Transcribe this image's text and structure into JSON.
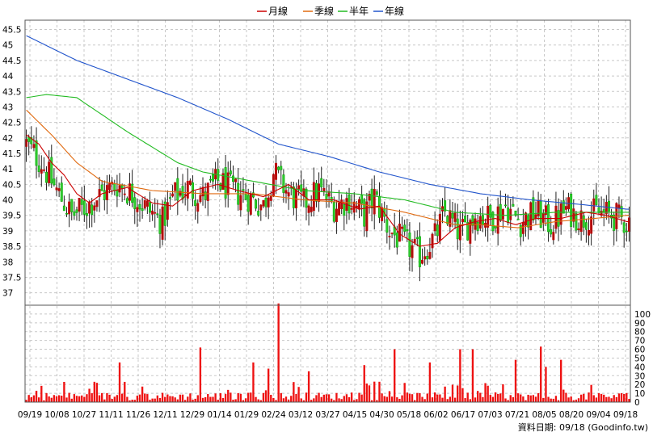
{
  "chart_data": [
    {
      "type": "candlestick",
      "legend": [
        {
          "label": "月線",
          "color": "#cc0000"
        },
        {
          "label": "季線",
          "color": "#e06a10"
        },
        {
          "label": "半年",
          "color": "#22bb22"
        },
        {
          "label": "年線",
          "color": "#2255cc"
        }
      ],
      "ylim": [
        36.6,
        45.8
      ],
      "y_ticks": [
        "37",
        "37.5",
        "38",
        "38.5",
        "39",
        "39.5",
        "40",
        "40.5",
        "41",
        "41.5",
        "42",
        "42.5",
        "43",
        "43.5",
        "44",
        "44.5",
        "45",
        "45.5"
      ],
      "x_ticks": [
        "09/19",
        "10/08",
        "10/27",
        "11/11",
        "11/26",
        "12/11",
        "12/29",
        "01/14",
        "01/29",
        "02/24",
        "03/12",
        "03/27",
        "04/15",
        "04/30",
        "05/18",
        "06/02",
        "06/17",
        "07/03",
        "07/21",
        "08/05",
        "08/20",
        "09/04",
        "09/18"
      ],
      "anchors": [
        [
          0,
          41.8
        ],
        [
          6,
          41.2
        ],
        [
          12,
          40.3
        ],
        [
          18,
          39.5
        ],
        [
          24,
          39.8
        ],
        [
          30,
          40.2
        ],
        [
          36,
          40.5
        ],
        [
          42,
          40.2
        ],
        [
          48,
          39.7
        ],
        [
          54,
          39.3
        ],
        [
          58,
          40.1
        ],
        [
          64,
          40.4
        ],
        [
          70,
          40.1
        ],
        [
          76,
          40.6
        ],
        [
          82,
          40.3
        ],
        [
          88,
          40.1
        ],
        [
          94,
          39.8
        ],
        [
          98,
          40.9
        ],
        [
          104,
          40.2
        ],
        [
          110,
          39.9
        ],
        [
          116,
          40.3
        ],
        [
          122,
          39.8
        ],
        [
          128,
          40.0
        ],
        [
          134,
          39.5
        ],
        [
          138,
          40.1
        ],
        [
          144,
          39.0
        ],
        [
          150,
          38.6
        ],
        [
          156,
          38.2
        ],
        [
          162,
          38.8
        ],
        [
          166,
          39.6
        ],
        [
          172,
          38.9
        ],
        [
          178,
          39.5
        ],
        [
          184,
          39.4
        ],
        [
          190,
          39.8
        ],
        [
          196,
          39.3
        ],
        [
          202,
          39.6
        ],
        [
          208,
          39.2
        ],
        [
          214,
          39.7
        ],
        [
          220,
          39.4
        ],
        [
          226,
          39.6
        ],
        [
          232,
          39.5
        ],
        [
          238,
          39.3
        ]
      ],
      "ma_lines": {
        "年線": [
          [
            0,
            45.3
          ],
          [
            20,
            44.5
          ],
          [
            40,
            43.9
          ],
          [
            60,
            43.3
          ],
          [
            80,
            42.6
          ],
          [
            100,
            41.8
          ],
          [
            120,
            41.4
          ],
          [
            140,
            40.9
          ],
          [
            160,
            40.5
          ],
          [
            180,
            40.2
          ],
          [
            200,
            40.0
          ],
          [
            220,
            39.85
          ],
          [
            238,
            39.7
          ]
        ],
        "半年": [
          [
            0,
            43.3
          ],
          [
            8,
            43.4
          ],
          [
            20,
            43.3
          ],
          [
            40,
            42.2
          ],
          [
            60,
            41.2
          ],
          [
            70,
            40.9
          ],
          [
            90,
            40.6
          ],
          [
            110,
            40.3
          ],
          [
            130,
            40.2
          ],
          [
            150,
            40.0
          ],
          [
            170,
            39.6
          ],
          [
            190,
            39.5
          ],
          [
            210,
            39.6
          ],
          [
            238,
            39.6
          ]
        ],
        "季線": [
          [
            0,
            42.9
          ],
          [
            10,
            42.1
          ],
          [
            20,
            41.2
          ],
          [
            30,
            40.6
          ],
          [
            50,
            40.3
          ],
          [
            70,
            40.2
          ],
          [
            90,
            40.2
          ],
          [
            110,
            40.0
          ],
          [
            130,
            39.9
          ],
          [
            150,
            39.6
          ],
          [
            160,
            39.4
          ],
          [
            170,
            39.2
          ],
          [
            180,
            39.2
          ],
          [
            195,
            39.1
          ],
          [
            210,
            39.3
          ],
          [
            225,
            39.4
          ],
          [
            238,
            39.5
          ]
        ],
        "月線": [
          [
            0,
            42.1
          ],
          [
            5,
            41.8
          ],
          [
            10,
            41.2
          ],
          [
            15,
            40.8
          ],
          [
            20,
            40.2
          ],
          [
            25,
            39.9
          ],
          [
            30,
            40.2
          ],
          [
            40,
            40.4
          ],
          [
            50,
            39.9
          ],
          [
            58,
            39.8
          ],
          [
            66,
            40.3
          ],
          [
            76,
            40.5
          ],
          [
            84,
            40.3
          ],
          [
            94,
            40.1
          ],
          [
            104,
            40.5
          ],
          [
            112,
            40.0
          ],
          [
            122,
            40.0
          ],
          [
            132,
            39.7
          ],
          [
            140,
            39.8
          ],
          [
            148,
            38.9
          ],
          [
            156,
            38.5
          ],
          [
            163,
            38.6
          ],
          [
            170,
            39.1
          ],
          [
            178,
            39.3
          ],
          [
            186,
            39.4
          ],
          [
            194,
            39.2
          ],
          [
            202,
            39.4
          ],
          [
            212,
            39.4
          ],
          [
            222,
            39.6
          ],
          [
            230,
            39.5
          ],
          [
            238,
            39.3
          ]
        ]
      },
      "volume": {
        "ylim": [
          0,
          110
        ],
        "y_ticks": [
          "0",
          "10",
          "20",
          "30",
          "40",
          "50",
          "60",
          "70",
          "80",
          "90",
          "100"
        ],
        "spikes": [
          [
            37,
            45
          ],
          [
            69,
            62
          ],
          [
            90,
            45
          ],
          [
            96,
            38
          ],
          [
            100,
            112
          ],
          [
            112,
            35
          ],
          [
            134,
            42
          ],
          [
            146,
            60
          ],
          [
            160,
            45
          ],
          [
            172,
            60
          ],
          [
            177,
            60
          ],
          [
            194,
            48
          ],
          [
            204,
            63
          ],
          [
            206,
            40
          ],
          [
            212,
            48
          ]
        ]
      },
      "source_label": "資料日期: 09/18 (Goodinfo.tw)"
    }
  ]
}
